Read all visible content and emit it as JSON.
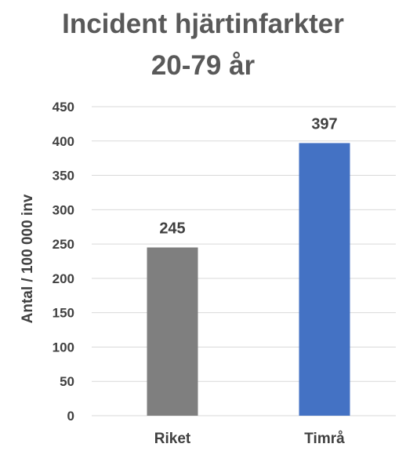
{
  "chart_data": {
    "type": "bar",
    "title_line1": "Incident hjärtinfarkter",
    "title_line2": "20-79 år",
    "ylabel": "Antal / 100 000 inv",
    "xlabel": "",
    "categories": [
      "Riket",
      "Timrå"
    ],
    "values": [
      245,
      397
    ],
    "data_labels": [
      "245",
      "397"
    ],
    "bar_colors": [
      "#7f7f7f",
      "#4472c4"
    ],
    "ylim": [
      0,
      450
    ],
    "yticks": [
      0,
      50,
      100,
      150,
      200,
      250,
      300,
      350,
      400,
      450
    ],
    "grid": true,
    "legend": false
  }
}
